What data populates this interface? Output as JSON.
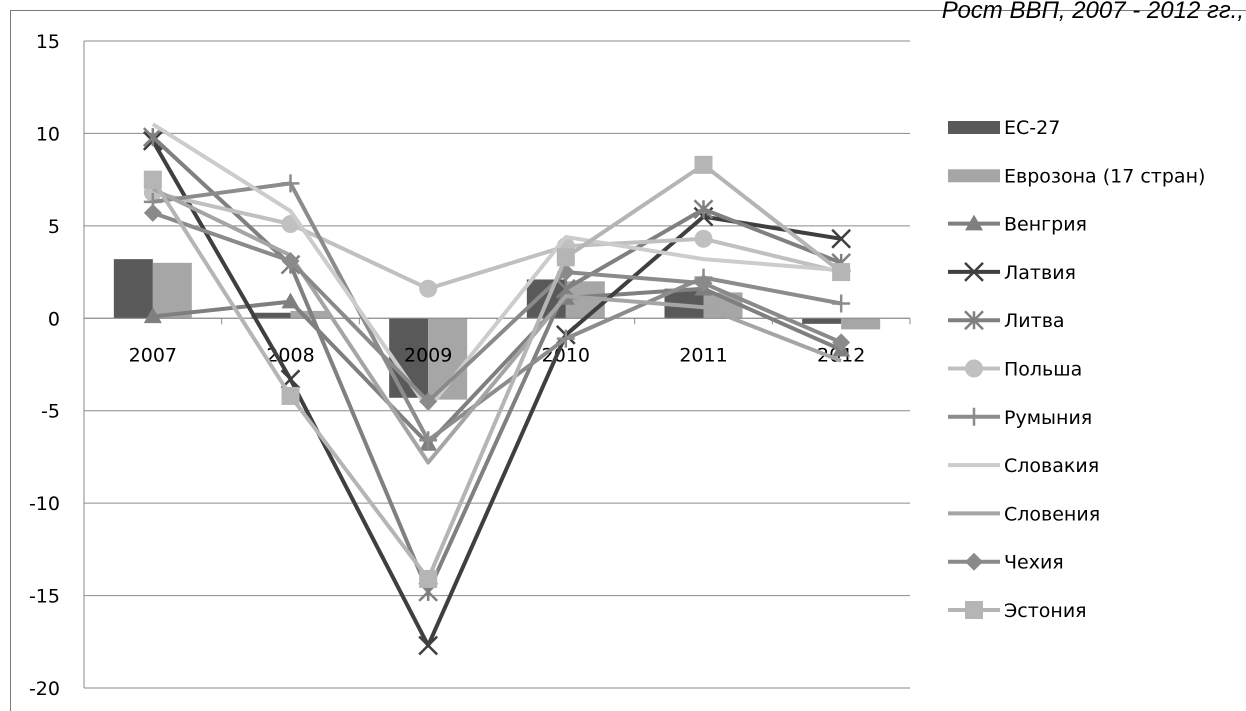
{
  "caption": "Рост ВВП, 2007 - 2012 гг.,",
  "chart_data": {
    "type": "bar",
    "title": "",
    "xlabel": "",
    "ylabel": "",
    "ylim": [
      -20,
      15
    ],
    "ytick_step": 5,
    "yticks": [
      "15",
      "10",
      "5",
      "0",
      "-5",
      "-10",
      "-15",
      "-20"
    ],
    "grid": true,
    "legend_position": "right",
    "categories": [
      "2007",
      "2008",
      "2009",
      "2010",
      "2011",
      "2012"
    ],
    "series": [
      {
        "name": "ЕС-27",
        "kind": "bar",
        "color": "#595959",
        "marker": "none",
        "values": [
          3.2,
          0.3,
          -4.3,
          2.1,
          1.6,
          -0.3
        ]
      },
      {
        "name": "Еврозона (17 стран)",
        "kind": "bar",
        "color": "#a6a6a6",
        "marker": "none",
        "values": [
          3.0,
          0.4,
          -4.4,
          2.0,
          1.4,
          -0.6
        ]
      },
      {
        "name": "Венгрия",
        "kind": "line",
        "color": "#7f7f7f",
        "marker": "triangle",
        "values": [
          0.1,
          0.9,
          -6.8,
          1.1,
          1.6,
          -1.7
        ]
      },
      {
        "name": "Латвия",
        "kind": "line",
        "color": "#3f3f3f",
        "marker": "x",
        "values": [
          9.6,
          -3.3,
          -17.7,
          -0.9,
          5.5,
          4.3
        ]
      },
      {
        "name": "Литва",
        "kind": "line",
        "color": "#808080",
        "marker": "star",
        "values": [
          9.8,
          2.9,
          -14.8,
          1.6,
          5.9,
          3.0
        ]
      },
      {
        "name": "Польша",
        "kind": "line",
        "color": "#c0c0c0",
        "marker": "circle",
        "values": [
          6.8,
          5.1,
          1.6,
          3.9,
          4.3,
          2.5
        ]
      },
      {
        "name": "Румыния",
        "kind": "line",
        "color": "#8c8c8c",
        "marker": "plus",
        "values": [
          6.3,
          7.3,
          -6.6,
          -1.1,
          2.2,
          0.8
        ]
      },
      {
        "name": "Словакия",
        "kind": "line",
        "color": "#cccccc",
        "marker": "none",
        "values": [
          10.5,
          5.8,
          -4.9,
          4.4,
          3.2,
          2.6
        ]
      },
      {
        "name": "Словения",
        "kind": "line",
        "color": "#a5a5a5",
        "marker": "none",
        "values": [
          7.0,
          3.4,
          -7.8,
          1.2,
          0.6,
          -2.3
        ]
      },
      {
        "name": "Чехия",
        "kind": "line",
        "color": "#8a8a8a",
        "marker": "diamond",
        "values": [
          5.7,
          3.1,
          -4.5,
          2.5,
          1.9,
          -1.3
        ]
      },
      {
        "name": "Эстония",
        "kind": "line",
        "color": "#b5b5b5",
        "marker": "square",
        "values": [
          7.5,
          -4.2,
          -14.1,
          3.3,
          8.3,
          2.5
        ]
      }
    ]
  }
}
